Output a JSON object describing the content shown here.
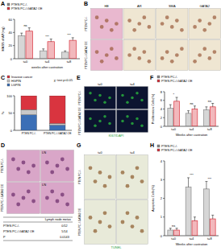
{
  "panel_labels": [
    "A",
    "B",
    "C",
    "D",
    "E",
    "F",
    "G",
    "H"
  ],
  "chart_data": [
    {
      "type": "bar",
      "y_label": "MASS of AP(mg)",
      "x_label": "weeks after castration",
      "categories": [
        "t=0",
        "t=4",
        "t=8"
      ],
      "series": [
        {
          "name": "PTEN PC-/-",
          "color": "#8a8a8a",
          "values": [
            35,
            12,
            10
          ],
          "errors": [
            4,
            3,
            2
          ]
        },
        {
          "name": "PTEN PC-/-GATA2 OE",
          "color": "#d9343f",
          "values": [
            42,
            26,
            28
          ],
          "errors": [
            5,
            4,
            4
          ]
        }
      ],
      "ylim": [
        0,
        60
      ],
      "yticks": [
        0,
        20,
        40,
        60
      ],
      "legend": "top-left",
      "annotations": [
        "ns",
        "***",
        "***"
      ]
    },
    {
      "type": "bar",
      "stacked": true,
      "y_label": "%",
      "categories": [
        "PTEN PC-/-",
        "PTEN PC-/-GATA2 OE"
      ],
      "series": [
        {
          "name": "LGPIN",
          "color": "#3b6fb6",
          "values": [
            45,
            15
          ]
        },
        {
          "name": "HGPIN",
          "color": "#c8c8c8",
          "values": [
            15,
            5
          ]
        },
        {
          "name": "Invasive cancer",
          "color": "#d9343f",
          "values": [
            40,
            80
          ]
        }
      ],
      "ylim": [
        0,
        100
      ],
      "yticks": [
        0,
        50,
        100
      ],
      "legend": "top-left",
      "annotation": "χ² test p<0.05"
    },
    {
      "type": "bar",
      "y_label": "Proliferation Cells(%)",
      "x_label": "Weeks after castration",
      "categories": [
        "t=0",
        "t=4",
        "t=8"
      ],
      "series": [
        {
          "name": "PTEN PC-/-",
          "color": "#8a8a8a",
          "values": [
            4.2,
            3,
            3.8
          ],
          "errors": [
            0.8,
            0.6,
            0.7
          ]
        },
        {
          "name": "PTEN PC-/-GATA2 OE",
          "color": "#d9343f",
          "values": [
            5.8,
            4,
            4.5
          ],
          "errors": [
            0.9,
            0.7,
            0.8
          ]
        }
      ],
      "ylim": [
        0,
        8
      ],
      "yticks": [
        0,
        2,
        4,
        6,
        8
      ],
      "legend": "top-left",
      "annotations": [
        "*",
        "ns",
        "ns"
      ]
    },
    {
      "type": "bar",
      "y_label": "Apoptotic Cells(%)",
      "x_label": "Weeks after castration",
      "categories": [
        "t=0",
        "t=4",
        "t=8"
      ],
      "series": [
        {
          "name": "PTEN PC-/-",
          "color": "#8a8a8a",
          "values": [
            0.3,
            2.6,
            2.5
          ],
          "errors": [
            0.1,
            0.5,
            0.4
          ]
        },
        {
          "name": "PTEN PC-/-GATA2 OE",
          "color": "#d9343f",
          "values": [
            0.3,
            0.8,
            0.9
          ],
          "errors": [
            0.1,
            0.2,
            0.2
          ]
        }
      ],
      "ylim": [
        0,
        4
      ],
      "yticks": [
        0,
        1,
        2,
        3,
        4
      ],
      "legend": "top-left",
      "annotations": [
        "ns",
        "***",
        "***"
      ]
    }
  ],
  "images": {
    "B": {
      "columns": [
        "HE",
        "AR",
        "SMA",
        "GATA2"
      ],
      "rows": [
        "PTEN PC-/-",
        "PTEN PC-/-GATA2 OE"
      ]
    },
    "D": {
      "rows": [
        "PTEN PC-/-",
        "PTEN PC-/-GATA2 OE"
      ],
      "label": "LN",
      "table": {
        "header": "Lymph node metas",
        "rows": [
          [
            "PTEN PC-/-",
            "0/12"
          ],
          [
            "PTEN PC-/-GATA2 OE",
            "5/14"
          ],
          [
            "P",
            "0.0143"
          ]
        ]
      }
    },
    "E": {
      "columns": [
        "t=0",
        "t=4"
      ],
      "rows": [
        "PTEN PC-/-",
        "PTEN PC-/-GATA2 OE"
      ],
      "stain": "KI67/DAPI"
    },
    "G": {
      "columns": [
        "t=0",
        "t=4"
      ],
      "rows": [
        "PTEN PC-/-",
        "PTEN PC-/-GATA2 OE"
      ],
      "stain": "TUNEL"
    }
  }
}
